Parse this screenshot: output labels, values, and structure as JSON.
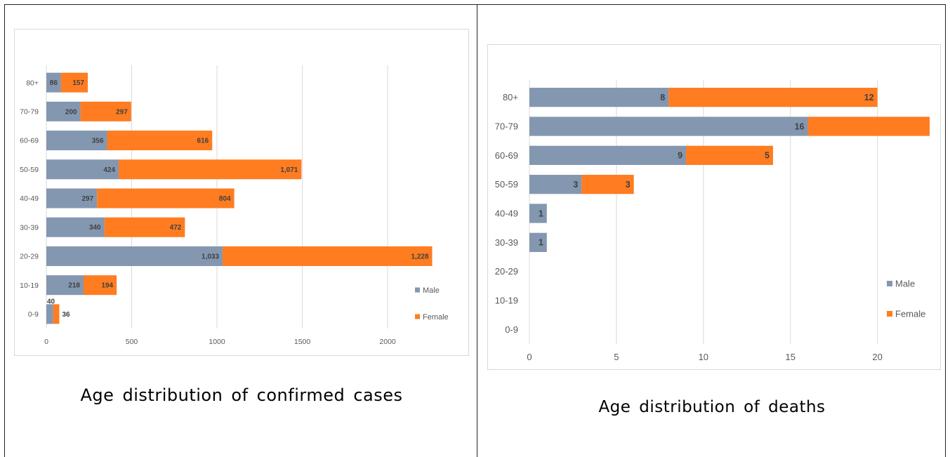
{
  "colors": {
    "male": "#8497b0",
    "female": "#ff7c20",
    "grid": "#d9d9d9",
    "text": "#595959",
    "label": "#404040"
  },
  "captions": {
    "left": "Age distribution of confirmed cases",
    "right": "Age distribution of deaths"
  },
  "chart_data": [
    {
      "type": "bar",
      "orientation": "horizontal",
      "stacked": true,
      "categories": [
        "0-9",
        "10-19",
        "20-29",
        "30-39",
        "40-49",
        "50-59",
        "60-69",
        "70-79",
        "80+"
      ],
      "series": [
        {
          "name": "Male",
          "values": [
            40,
            218,
            1033,
            340,
            297,
            424,
            356,
            200,
            86
          ],
          "labels": [
            "40",
            "218",
            "1,033",
            "340",
            "297",
            "424",
            "356",
            "200",
            "86"
          ]
        },
        {
          "name": "Female",
          "values": [
            36,
            194,
            1228,
            472,
            804,
            1071,
            616,
            297,
            157
          ],
          "labels": [
            "36",
            "194",
            "1,228",
            "472",
            "804",
            "1,071",
            "616",
            "297",
            "157"
          ]
        }
      ],
      "xlim": [
        0,
        2300
      ],
      "xticks": [
        0,
        500,
        1000,
        1500,
        2000
      ],
      "xtick_labels": [
        "0",
        "500",
        "1000",
        "1500",
        "2000"
      ],
      "grid": true,
      "legend_position": "bottom-right"
    },
    {
      "type": "bar",
      "orientation": "horizontal",
      "stacked": true,
      "categories": [
        "0-9",
        "10-19",
        "20-29",
        "30-39",
        "40-49",
        "50-59",
        "60-69",
        "70-79",
        "80+"
      ],
      "series": [
        {
          "name": "Male",
          "values": [
            0,
            0,
            0,
            1,
            1,
            3,
            9,
            16,
            8
          ],
          "labels": [
            "",
            "",
            "",
            "1",
            "1",
            "3",
            "9",
            "16",
            "8"
          ]
        },
        {
          "name": "Female",
          "values": [
            0,
            0,
            0,
            0,
            0,
            3,
            5,
            7,
            12
          ],
          "labels": [
            "",
            "",
            "",
            "",
            "",
            "3",
            "5",
            "",
            "12"
          ]
        }
      ],
      "xlim": [
        0,
        23
      ],
      "xticks": [
        0,
        5,
        10,
        15,
        20
      ],
      "xtick_labels": [
        "0",
        "5",
        "10",
        "15",
        "20"
      ],
      "grid": true,
      "legend_position": "bottom-right"
    }
  ]
}
